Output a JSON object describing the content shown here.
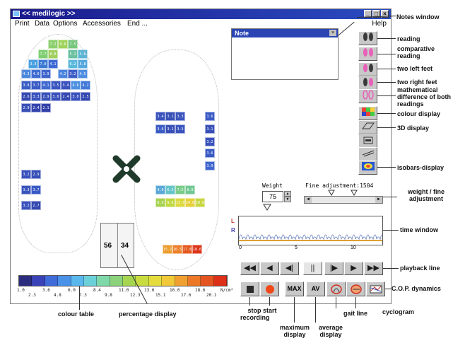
{
  "window": {
    "title": "<< medilogic >>",
    "menu": [
      "Print",
      "Data",
      "Options",
      "Accessories",
      "End ..."
    ],
    "help": "Help"
  },
  "note": {
    "title": "Note"
  },
  "weight": {
    "label": "Weight",
    "value": "75",
    "fine_label": "Fine adjustment:1504"
  },
  "time_window": {
    "axis_labels": [
      "0",
      "5",
      "10"
    ],
    "lane_labels": [
      "L",
      "R"
    ]
  },
  "percentage": {
    "left": "56",
    "right": "34"
  },
  "colour_scale": {
    "colors": [
      "#2c2c7e",
      "#3a42b8",
      "#3f6cd8",
      "#4a92e8",
      "#5ab8ec",
      "#6cd0d8",
      "#7ed8a8",
      "#8cd27a",
      "#a6d650",
      "#c8dc40",
      "#e4dc3c",
      "#f0c838",
      "#f0a030",
      "#ec7828",
      "#e45420",
      "#dc3018"
    ],
    "labels_top": [
      "1.0",
      "3.6",
      "6.0",
      "8.4",
      "11.0",
      "13.6",
      "16.0",
      "18.6",
      "N/cm²"
    ],
    "labels_bottom": [
      "2.3",
      "4.8",
      "7.3",
      "9.8",
      "12.3",
      "15.1",
      "17.6",
      "20.1"
    ]
  },
  "annotations": {
    "notes_window": "Notes window",
    "reading": "reading",
    "comparative_reading": "comparative reading",
    "two_left_feet": "two left feet",
    "two_right_feet": "two right feet",
    "math_difference": "mathematical difference of both readings",
    "colour_display": "colour display",
    "display_3d": "3D display",
    "isobars_display": "isobars-display",
    "weight_fine": "weight / fine adjustment",
    "time_window": "time window",
    "playback_line": "playback line",
    "cop_dynamics": "C.O.P. dynamics",
    "colour_table": "colour table",
    "percentage_display": "percentage display",
    "stop_recording": "stop recording",
    "start": "start",
    "maximum_display": "maximum display",
    "average_display": "average display",
    "gait_line": "gait line",
    "cyclogram": "cyclogram"
  },
  "bottom_buttons": {
    "max": "MAX",
    "av": "AV"
  },
  "left_foot_cells": [
    [
      "7.2",
      "#8ccf6e"
    ],
    [
      "9.6",
      "#9fd35a"
    ],
    [
      "7.5",
      "#77c77c"
    ],
    [
      "7.7",
      "#7fcf72"
    ],
    [
      "8.8",
      "#a0d060"
    ],
    [
      "5.1",
      "#6ac0a0"
    ],
    [
      "3.6",
      "#5ab4d4"
    ],
    [
      "3.3",
      "#4aa0e0"
    ],
    [
      "7.0",
      "#3a7ad4"
    ],
    [
      "4.1",
      "#3c6ad4"
    ],
    [
      "6.2",
      "#5ab8dc"
    ],
    [
      "5.8",
      "#54a8de"
    ],
    [
      "4.3",
      "#4a88dc"
    ],
    [
      "4.0",
      "#3f6cd0"
    ],
    [
      "3.9",
      "#3f66cc"
    ],
    [
      "4.2",
      "#4a84dc"
    ],
    [
      "3.2",
      "#3e5ec8"
    ],
    [
      "4.5",
      "#4e8ee0"
    ],
    [
      "3.8",
      "#3b5ec4"
    ],
    [
      "3.7",
      "#3a5ac4"
    ],
    [
      "4.1",
      "#406ad0"
    ],
    [
      "3.5",
      "#3a56c0"
    ],
    [
      "3.4",
      "#3a52bc"
    ],
    [
      "4.6",
      "#4e90e0"
    ],
    [
      "4.2",
      "#4278d6"
    ],
    [
      "2.6",
      "#3448b0"
    ],
    [
      "3.3",
      "#3a54bc"
    ],
    [
      "2.9",
      "#3852b8"
    ],
    [
      "3.0",
      "#3a50ba"
    ],
    [
      "2.4",
      "#3448b0"
    ],
    [
      "3.0",
      "#3a52bc"
    ],
    [
      "2.5",
      "#3448b0"
    ],
    [
      "2.9",
      "#3850b6"
    ],
    [
      "2.4",
      "#3444ae"
    ],
    [
      "2.1",
      "#3240a8"
    ],
    [
      "3.2",
      "#3a52bc"
    ],
    [
      "2.9",
      "#3850b6"
    ],
    [
      "3.3",
      "#3a54bc"
    ],
    [
      "3.7",
      "#3a5ac4"
    ],
    [
      "3.2",
      "#3a52bc"
    ],
    [
      "2.7",
      "#3448b0"
    ]
  ],
  "right_foot_cells": [
    [
      "3.4",
      "#3a52bc"
    ],
    [
      "3.1",
      "#3850b6"
    ],
    [
      "3.3",
      "#3a54bc"
    ],
    [
      "3.6",
      "#3a5ac4"
    ],
    [
      "3.1",
      "#3850b6"
    ],
    [
      "3.3",
      "#3a54bc"
    ],
    [
      "3.6",
      "#3a5ac4"
    ],
    [
      "3.1",
      "#3850b6"
    ],
    [
      "3.2",
      "#3a52bc"
    ],
    [
      "3.6",
      "#3a5ac4"
    ],
    [
      "3.9",
      "#3f66cc"
    ],
    [
      "4.9",
      "#5aa8d8"
    ],
    [
      "6.3",
      "#64c4c8"
    ],
    [
      "7.5",
      "#7ccc8a"
    ],
    [
      "6.9",
      "#72c894"
    ],
    [
      "8.9",
      "#a6d250"
    ],
    [
      "9.6",
      "#c0d840"
    ],
    [
      "13.7",
      "#dcd83c"
    ],
    [
      "14.0",
      "#e6d03a"
    ],
    [
      "10.6",
      "#c8d640"
    ],
    [
      "15.2",
      "#ec9c2e"
    ],
    [
      "16.5",
      "#ec7e28"
    ],
    [
      "17.8",
      "#e4581e"
    ],
    [
      "18.6",
      "#dc3418"
    ]
  ]
}
